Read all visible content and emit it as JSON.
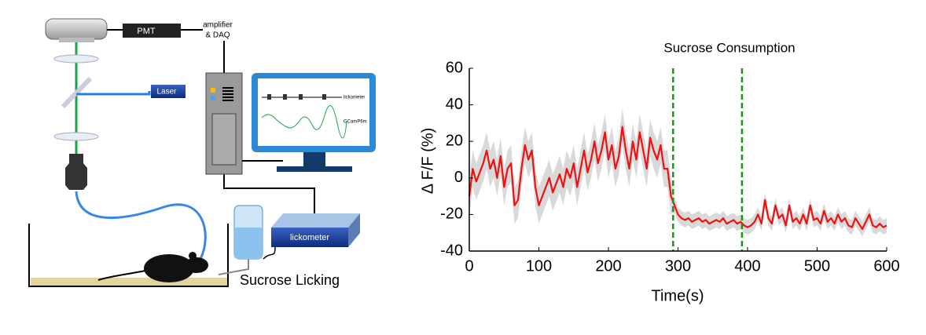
{
  "diagram": {
    "labels": {
      "pmt": "PMT",
      "amplifier": "amplifier",
      "daq": "& DAQ",
      "laser": "Laser",
      "screen_lick": "lickometer",
      "screen_gcamp": "GCamP6m",
      "lickometer": "lickometer",
      "licking": "Sucrose Licking"
    }
  },
  "chart_data": {
    "type": "line",
    "title": "Sucrose Consumption",
    "xlabel": "Time(s)",
    "ylabel": "Δ F/F (%)",
    "x": [
      0,
      5,
      10,
      15,
      20,
      25,
      30,
      35,
      40,
      45,
      50,
      55,
      60,
      65,
      70,
      75,
      80,
      85,
      90,
      95,
      100,
      105,
      110,
      115,
      120,
      125,
      130,
      135,
      140,
      145,
      150,
      155,
      160,
      165,
      170,
      175,
      180,
      185,
      190,
      195,
      200,
      205,
      210,
      215,
      220,
      225,
      230,
      235,
      240,
      245,
      250,
      255,
      260,
      265,
      270,
      275,
      280,
      285,
      290,
      295,
      300,
      305,
      310,
      315,
      320,
      325,
      330,
      335,
      340,
      345,
      350,
      355,
      360,
      365,
      370,
      375,
      380,
      385,
      390,
      395,
      400,
      405,
      410,
      415,
      420,
      425,
      430,
      435,
      440,
      445,
      450,
      455,
      460,
      465,
      470,
      475,
      480,
      485,
      490,
      495,
      500,
      505,
      510,
      515,
      520,
      525,
      530,
      535,
      540,
      545,
      550,
      555,
      560,
      565,
      570,
      575,
      580,
      585,
      590,
      595,
      600
    ],
    "values": [
      -10,
      5,
      -2,
      3,
      8,
      15,
      5,
      10,
      0,
      12,
      -5,
      5,
      8,
      -15,
      -12,
      5,
      18,
      10,
      15,
      -5,
      -15,
      -10,
      -5,
      0,
      -8,
      -3,
      2,
      -5,
      5,
      0,
      8,
      -5,
      5,
      15,
      3,
      10,
      20,
      8,
      15,
      25,
      10,
      18,
      5,
      12,
      28,
      15,
      5,
      20,
      10,
      25,
      15,
      5,
      22,
      15,
      10,
      18,
      5,
      5,
      -10,
      -15,
      -20,
      -22,
      -23,
      -22,
      -24,
      -23,
      -22,
      -24,
      -23,
      -25,
      -24,
      -23,
      -24,
      -22,
      -25,
      -24,
      -23,
      -25,
      -24,
      -26,
      -27,
      -26,
      -24,
      -20,
      -25,
      -12,
      -22,
      -25,
      -15,
      -22,
      -20,
      -26,
      -15,
      -24,
      -22,
      -25,
      -20,
      -25,
      -15,
      -23,
      -22,
      -25,
      -18,
      -24,
      -22,
      -25,
      -20,
      -24,
      -22,
      -26,
      -27,
      -22,
      -25,
      -28,
      -24,
      -20,
      -26,
      -27,
      -25,
      -27,
      -26
    ],
    "error": [
      10,
      10,
      10,
      10,
      10,
      10,
      10,
      10,
      10,
      10,
      10,
      10,
      10,
      10,
      10,
      10,
      10,
      10,
      10,
      10,
      10,
      10,
      10,
      10,
      10,
      10,
      10,
      10,
      10,
      10,
      10,
      10,
      10,
      10,
      10,
      10,
      10,
      10,
      10,
      10,
      10,
      10,
      10,
      10,
      10,
      10,
      10,
      10,
      10,
      10,
      10,
      10,
      10,
      10,
      10,
      10,
      10,
      10,
      10,
      4,
      4,
      4,
      4,
      4,
      4,
      4,
      4,
      4,
      4,
      4,
      4,
      4,
      4,
      4,
      4,
      4,
      4,
      4,
      4,
      4,
      4,
      4,
      4,
      4,
      4,
      4,
      4,
      4,
      4,
      4,
      4,
      4,
      4,
      4,
      4,
      4,
      4,
      4,
      4,
      4,
      4,
      4,
      4,
      4,
      4,
      4,
      4,
      4,
      4,
      4,
      4,
      4,
      4,
      4,
      4,
      4,
      4,
      4,
      4,
      4,
      4
    ],
    "color": "#ee1111",
    "error_color": "#d9d9d9",
    "vlines": [
      293,
      392
    ],
    "vline_color": "#129a12",
    "xlim": [
      0,
      600
    ],
    "ylim": [
      -40,
      60
    ],
    "xticks": [
      0,
      100,
      200,
      300,
      400,
      500,
      600
    ],
    "yticks": [
      -40,
      -20,
      0,
      20,
      40,
      60
    ]
  }
}
